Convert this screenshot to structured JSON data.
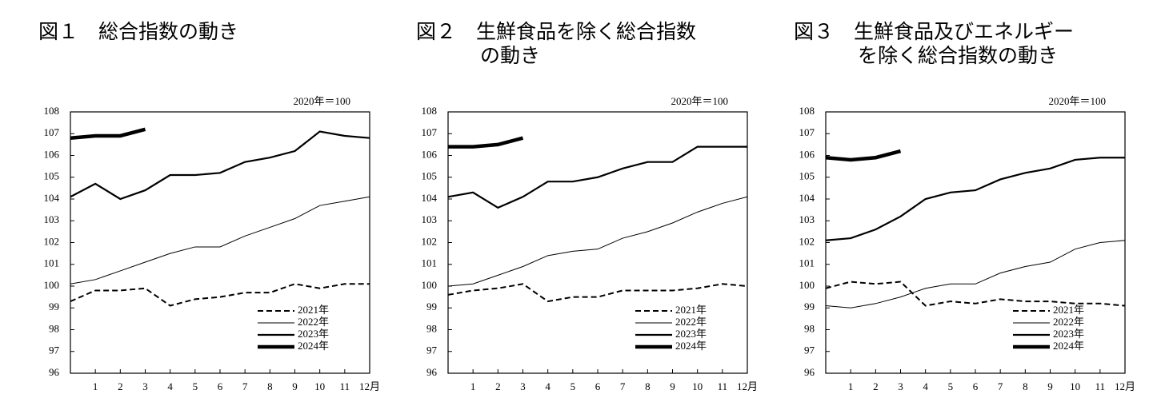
{
  "chart_data": [
    {
      "type": "line",
      "title": [
        "図１　総合指数の動き"
      ],
      "note": "2020年＝100",
      "categories": [
        null,
        "1",
        "2",
        "3",
        "4",
        "5",
        "6",
        "7",
        "8",
        "9",
        "10",
        "11",
        "12月"
      ],
      "ylim": [
        96,
        108
      ],
      "yticks": [
        96,
        97,
        98,
        99,
        100,
        101,
        102,
        103,
        104,
        105,
        106,
        107,
        108
      ],
      "legend": "lower right",
      "series": [
        {
          "name": "2021年",
          "color": "#000000",
          "dashed": true,
          "values": [
            99.3,
            99.8,
            99.8,
            99.9,
            99.1,
            99.4,
            99.5,
            99.7,
            99.7,
            100.1,
            99.9,
            100.1,
            100.1
          ]
        },
        {
          "name": "2022年",
          "color": "#000000",
          "values": [
            100.1,
            100.3,
            100.7,
            101.1,
            101.5,
            101.8,
            101.8,
            102.3,
            102.7,
            103.1,
            103.7,
            103.9,
            104.1
          ]
        },
        {
          "name": "2023年",
          "color": "#000000",
          "values": [
            104.1,
            104.7,
            104.0,
            104.4,
            105.1,
            105.1,
            105.2,
            105.7,
            105.9,
            106.2,
            107.1,
            106.9,
            106.8
          ]
        },
        {
          "name": "2024年",
          "color": "#000000",
          "values": [
            106.8,
            106.9,
            106.9,
            107.2,
            null,
            null,
            null,
            null,
            null,
            null,
            null,
            null,
            null
          ]
        }
      ]
    },
    {
      "type": "line",
      "title": [
        "図２　生鮮食品を除く総合指数",
        "の動き"
      ],
      "note": "2020年＝100",
      "categories": [
        null,
        "1",
        "2",
        "3",
        "4",
        "5",
        "6",
        "7",
        "8",
        "9",
        "10",
        "11",
        "12月"
      ],
      "ylim": [
        96,
        108
      ],
      "yticks": [
        96,
        97,
        98,
        99,
        100,
        101,
        102,
        103,
        104,
        105,
        106,
        107,
        108
      ],
      "legend": "lower right",
      "series": [
        {
          "name": "2021年",
          "color": "#000000",
          "dashed": true,
          "values": [
            99.6,
            99.8,
            99.9,
            100.1,
            99.3,
            99.5,
            99.5,
            99.8,
            99.8,
            99.8,
            99.9,
            100.1,
            100.0
          ]
        },
        {
          "name": "2022年",
          "color": "#000000",
          "values": [
            100.0,
            100.1,
            100.5,
            100.9,
            101.4,
            101.6,
            101.7,
            102.2,
            102.5,
            102.9,
            103.4,
            103.8,
            104.1
          ]
        },
        {
          "name": "2023年",
          "color": "#000000",
          "values": [
            104.1,
            104.3,
            103.6,
            104.1,
            104.8,
            104.8,
            105.0,
            105.4,
            105.7,
            105.7,
            106.4,
            106.4,
            106.4
          ]
        },
        {
          "name": "2024年",
          "color": "#000000",
          "values": [
            106.4,
            106.4,
            106.5,
            106.8,
            null,
            null,
            null,
            null,
            null,
            null,
            null,
            null,
            null
          ]
        }
      ]
    },
    {
      "type": "line",
      "title": [
        "図３　生鮮食品及びエネルギー",
        "を除く総合指数の動き"
      ],
      "note": "2020年＝100",
      "categories": [
        null,
        "1",
        "2",
        "3",
        "4",
        "5",
        "6",
        "7",
        "8",
        "9",
        "10",
        "11",
        "12月"
      ],
      "ylim": [
        96,
        108
      ],
      "yticks": [
        96,
        97,
        98,
        99,
        100,
        101,
        102,
        103,
        104,
        105,
        106,
        107,
        108
      ],
      "legend": "lower right",
      "series": [
        {
          "name": "2021年",
          "color": "#000000",
          "dashed": true,
          "values": [
            99.9,
            100.2,
            100.1,
            100.2,
            99.1,
            99.3,
            99.2,
            99.4,
            99.3,
            99.3,
            99.2,
            99.2,
            99.1
          ]
        },
        {
          "name": "2022年",
          "color": "#000000",
          "values": [
            99.1,
            99.0,
            99.2,
            99.5,
            99.9,
            100.1,
            100.1,
            100.6,
            100.9,
            101.1,
            101.7,
            102.0,
            102.1
          ]
        },
        {
          "name": "2023年",
          "color": "#000000",
          "values": [
            102.1,
            102.2,
            102.6,
            103.2,
            104.0,
            104.3,
            104.4,
            104.9,
            105.2,
            105.4,
            105.8,
            105.9,
            105.9
          ]
        },
        {
          "name": "2024年",
          "color": "#000000",
          "values": [
            105.9,
            105.8,
            105.9,
            106.2,
            null,
            null,
            null,
            null,
            null,
            null,
            null,
            null,
            null
          ]
        }
      ]
    }
  ]
}
